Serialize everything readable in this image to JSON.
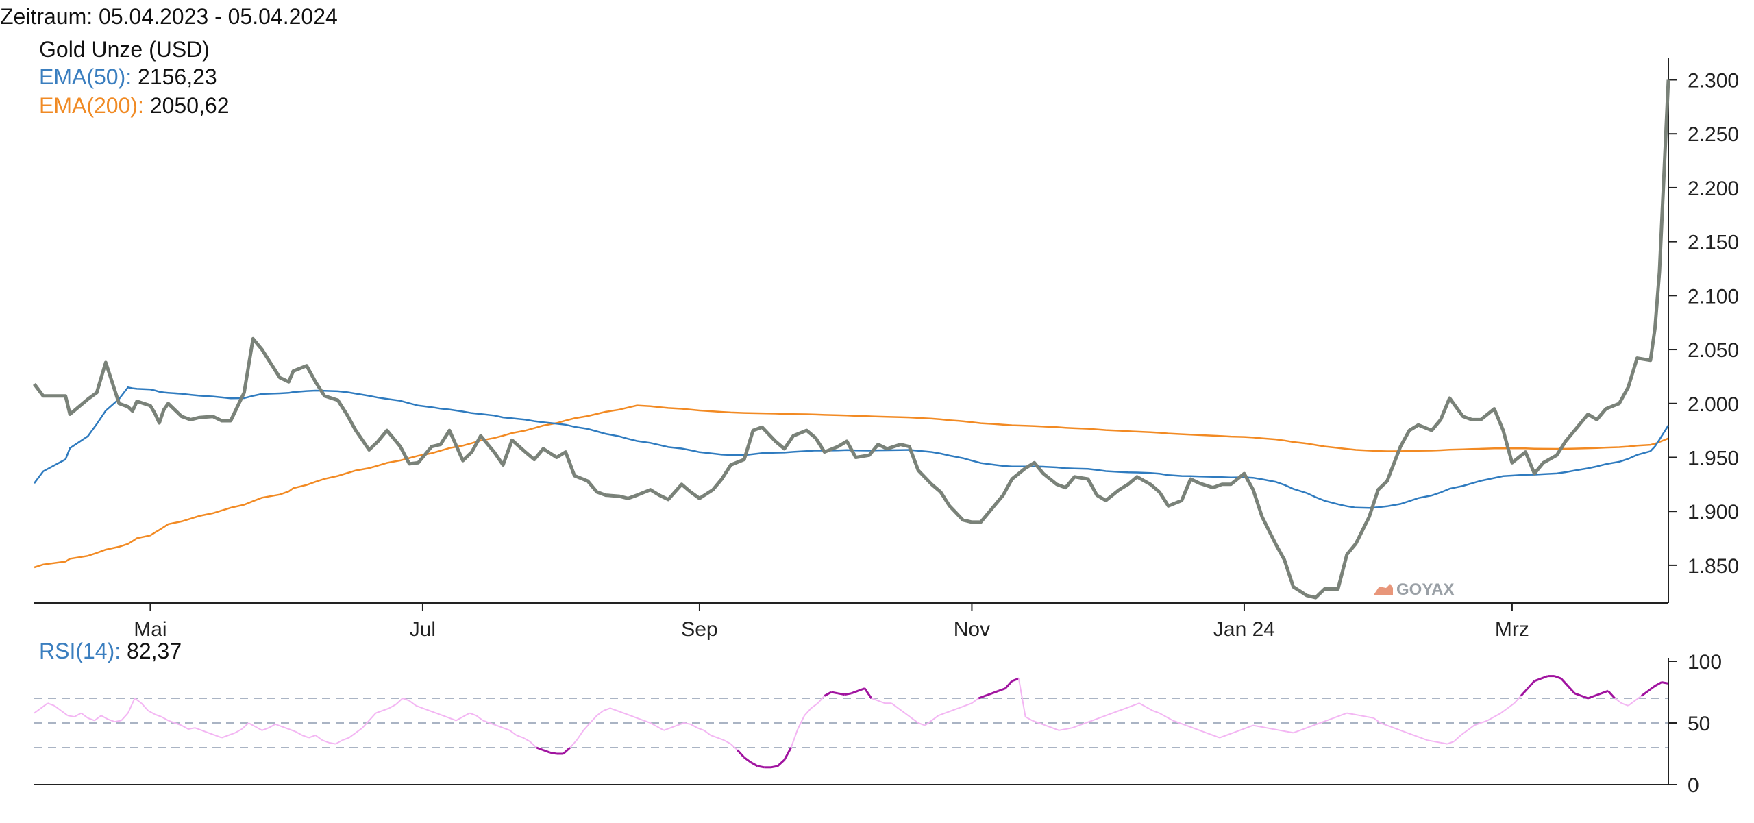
{
  "header": {
    "period": "Zeitraum: 05.04.2023 - 05.04.2024"
  },
  "legend": {
    "gold": "Gold Unze (USD)",
    "ema50_label": "EMA(50):",
    "ema50_value": "2156,23",
    "ema200_label": "EMA(200):",
    "ema200_value": "2050,62",
    "rsi_label": "RSI(14):",
    "rsi_value": "82,37"
  },
  "watermark": "GOYAX",
  "colors": {
    "price": "#7a8279",
    "ema50": "#2f7bbf",
    "ema200": "#f28a23",
    "rsi_neutral": "#f3b6f3",
    "rsi_extreme": "#a0139f",
    "guide": "#aab4c4"
  },
  "chart_data": [
    {
      "type": "line",
      "x_ticks": [
        "Mai",
        "Jul",
        "Sep",
        "Nov",
        "Jan 24",
        "Mrz"
      ],
      "y_ticks": [
        "1.850",
        "1.900",
        "1.950",
        "2.000",
        "2.050",
        "2.100",
        "2.150",
        "2.200",
        "2.250",
        "2.300"
      ],
      "tick_values": [
        1850,
        1900,
        1950,
        2000,
        2050,
        2100,
        2150,
        2200,
        2250,
        2300
      ],
      "ylim": [
        1815,
        2320
      ],
      "x_start": "2023-04-05",
      "x_end": "2024-04-05",
      "series": [
        {
          "name": "Gold Unze (USD)",
          "points": [
            [
              "2023-04-05",
              2018
            ],
            [
              "2023-04-07",
              2007
            ],
            [
              "2023-04-12",
              2007
            ],
            [
              "2023-04-13",
              1990
            ],
            [
              "2023-04-17",
              2004
            ],
            [
              "2023-04-19",
              2010
            ],
            [
              "2023-04-21",
              2038
            ],
            [
              "2023-04-24",
              2000
            ],
            [
              "2023-04-26",
              1997
            ],
            [
              "2023-04-27",
              1993
            ],
            [
              "2023-04-28",
              2002
            ],
            [
              "2023-05-01",
              1998
            ],
            [
              "2023-05-02",
              1991
            ],
            [
              "2023-05-03",
              1982
            ],
            [
              "2023-05-04",
              1994
            ],
            [
              "2023-05-05",
              2000
            ],
            [
              "2023-05-08",
              1988
            ],
            [
              "2023-05-10",
              1985
            ],
            [
              "2023-05-12",
              1987
            ],
            [
              "2023-05-15",
              1988
            ],
            [
              "2023-05-17",
              1984
            ],
            [
              "2023-05-19",
              1984
            ],
            [
              "2023-05-22",
              2010
            ],
            [
              "2023-05-24",
              2060
            ],
            [
              "2023-05-26",
              2050
            ],
            [
              "2023-05-30",
              2024
            ],
            [
              "2023-06-01",
              2020
            ],
            [
              "2023-06-02",
              2030
            ],
            [
              "2023-06-05",
              2035
            ],
            [
              "2023-06-07",
              2020
            ],
            [
              "2023-06-09",
              2007
            ],
            [
              "2023-06-12",
              2003
            ],
            [
              "2023-06-14",
              1990
            ],
            [
              "2023-06-16",
              1975
            ],
            [
              "2023-06-19",
              1957
            ],
            [
              "2023-06-21",
              1965
            ],
            [
              "2023-06-23",
              1975
            ],
            [
              "2023-06-26",
              1960
            ],
            [
              "2023-06-28",
              1944
            ],
            [
              "2023-06-30",
              1945
            ],
            [
              "2023-07-03",
              1960
            ],
            [
              "2023-07-05",
              1962
            ],
            [
              "2023-07-07",
              1975
            ],
            [
              "2023-07-10",
              1947
            ],
            [
              "2023-07-12",
              1955
            ],
            [
              "2023-07-14",
              1970
            ],
            [
              "2023-07-17",
              1955
            ],
            [
              "2023-07-19",
              1943
            ],
            [
              "2023-07-21",
              1966
            ],
            [
              "2023-07-24",
              1955
            ],
            [
              "2023-07-26",
              1948
            ],
            [
              "2023-07-28",
              1958
            ],
            [
              "2023-07-31",
              1950
            ],
            [
              "2023-08-02",
              1955
            ],
            [
              "2023-08-04",
              1933
            ],
            [
              "2023-08-07",
              1928
            ],
            [
              "2023-08-09",
              1918
            ],
            [
              "2023-08-11",
              1915
            ],
            [
              "2023-08-14",
              1914
            ],
            [
              "2023-08-16",
              1912
            ],
            [
              "2023-08-18",
              1915
            ],
            [
              "2023-08-21",
              1920
            ],
            [
              "2023-08-23",
              1915
            ],
            [
              "2023-08-25",
              1911
            ],
            [
              "2023-08-28",
              1925
            ],
            [
              "2023-08-30",
              1918
            ],
            [
              "2023-09-01",
              1912
            ],
            [
              "2023-09-04",
              1920
            ],
            [
              "2023-09-06",
              1930
            ],
            [
              "2023-09-08",
              1943
            ],
            [
              "2023-09-11",
              1948
            ],
            [
              "2023-09-13",
              1975
            ],
            [
              "2023-09-15",
              1978
            ],
            [
              "2023-09-18",
              1965
            ],
            [
              "2023-09-20",
              1958
            ],
            [
              "2023-09-22",
              1970
            ],
            [
              "2023-09-25",
              1975
            ],
            [
              "2023-09-27",
              1968
            ],
            [
              "2023-09-29",
              1955
            ],
            [
              "2023-10-02",
              1960
            ],
            [
              "2023-10-04",
              1965
            ],
            [
              "2023-10-06",
              1950
            ],
            [
              "2023-10-09",
              1952
            ],
            [
              "2023-10-11",
              1962
            ],
            [
              "2023-10-13",
              1958
            ],
            [
              "2023-10-16",
              1962
            ],
            [
              "2023-10-18",
              1960
            ],
            [
              "2023-10-20",
              1938
            ],
            [
              "2023-10-23",
              1925
            ],
            [
              "2023-10-25",
              1918
            ],
            [
              "2023-10-27",
              1905
            ],
            [
              "2023-10-30",
              1892
            ],
            [
              "2023-11-01",
              1890
            ],
            [
              "2023-11-03",
              1890
            ],
            [
              "2023-11-06",
              1905
            ],
            [
              "2023-11-08",
              1915
            ],
            [
              "2023-11-10",
              1930
            ],
            [
              "2023-11-13",
              1940
            ],
            [
              "2023-11-15",
              1945
            ],
            [
              "2023-11-17",
              1935
            ],
            [
              "2023-11-20",
              1925
            ],
            [
              "2023-11-22",
              1922
            ],
            [
              "2023-11-24",
              1932
            ],
            [
              "2023-11-27",
              1930
            ],
            [
              "2023-11-29",
              1915
            ],
            [
              "2023-12-01",
              1910
            ],
            [
              "2023-12-04",
              1920
            ],
            [
              "2023-12-06",
              1925
            ],
            [
              "2023-12-08",
              1932
            ],
            [
              "2023-12-11",
              1925
            ],
            [
              "2023-12-13",
              1918
            ],
            [
              "2023-12-15",
              1905
            ],
            [
              "2023-12-18",
              1910
            ],
            [
              "2023-12-20",
              1930
            ],
            [
              "2023-12-22",
              1926
            ],
            [
              "2023-12-25",
              1922
            ],
            [
              "2023-12-27",
              1925
            ],
            [
              "2023-12-29",
              1925
            ],
            [
              "2024-01-01",
              1935
            ],
            [
              "2024-01-03",
              1920
            ],
            [
              "2024-01-05",
              1895
            ],
            [
              "2024-01-08",
              1870
            ],
            [
              "2024-01-10",
              1855
            ],
            [
              "2024-01-12",
              1830
            ],
            [
              "2024-01-15",
              1822
            ],
            [
              "2024-01-17",
              1820
            ],
            [
              "2024-01-19",
              1828
            ],
            [
              "2024-01-22",
              1828
            ],
            [
              "2024-01-24",
              1860
            ],
            [
              "2024-01-26",
              1870
            ],
            [
              "2024-01-29",
              1895
            ],
            [
              "2024-01-31",
              1920
            ],
            [
              "2024-02-02",
              1928
            ],
            [
              "2024-02-05",
              1960
            ],
            [
              "2024-02-07",
              1975
            ],
            [
              "2024-02-09",
              1980
            ],
            [
              "2024-02-12",
              1975
            ],
            [
              "2024-02-14",
              1985
            ],
            [
              "2024-02-16",
              2005
            ],
            [
              "2024-02-19",
              1988
            ],
            [
              "2024-02-21",
              1985
            ],
            [
              "2024-02-23",
              1985
            ],
            [
              "2024-02-26",
              1995
            ],
            [
              "2024-02-28",
              1975
            ],
            [
              "2024-03-01",
              1945
            ],
            [
              "2024-03-04",
              1955
            ],
            [
              "2024-03-06",
              1935
            ],
            [
              "2024-03-08",
              1945
            ],
            [
              "2024-03-11",
              1952
            ],
            [
              "2024-03-13",
              1965
            ],
            [
              "2024-03-15",
              1975
            ],
            [
              "2024-03-18",
              1990
            ],
            [
              "2024-03-20",
              1985
            ],
            [
              "2024-03-22",
              1995
            ],
            [
              "2024-03-25",
              2000
            ],
            [
              "2024-03-27",
              2015
            ],
            [
              "2024-03-29",
              2042
            ],
            [
              "2024-04-01",
              2040
            ],
            [
              "2024-04-02",
              2070
            ],
            [
              "2024-04-03",
              2122
            ],
            [
              "2024-04-05",
              2300
            ]
          ]
        }
      ]
    },
    {
      "type": "line",
      "title": "",
      "y_ticks": [
        "0",
        "50",
        "100"
      ],
      "tick_values": [
        0,
        50,
        100
      ],
      "ylim": [
        0,
        100
      ],
      "guides": [
        30,
        50,
        70
      ],
      "series": [
        {
          "name": "RSI(14)",
          "values": [
            58,
            62,
            66,
            64,
            60,
            56,
            55,
            58,
            54,
            52,
            56,
            53,
            51,
            52,
            58,
            70,
            66,
            60,
            57,
            55,
            52,
            50,
            48,
            45,
            46,
            44,
            42,
            40,
            38,
            40,
            42,
            45,
            50,
            47,
            44,
            46,
            49,
            47,
            45,
            43,
            40,
            38,
            40,
            36,
            34,
            33,
            36,
            38,
            42,
            46,
            52,
            58,
            60,
            62,
            65,
            70,
            68,
            64,
            62,
            60,
            58,
            56,
            54,
            52,
            55,
            58,
            56,
            52,
            50,
            48,
            46,
            44,
            40,
            38,
            35,
            30,
            28,
            26,
            25,
            25,
            30,
            36,
            44,
            50,
            56,
            60,
            62,
            60,
            58,
            56,
            54,
            52,
            50,
            47,
            44,
            46,
            48,
            50,
            49,
            46,
            44,
            40,
            38,
            36,
            33,
            28,
            22,
            18,
            15,
            14,
            14,
            15,
            20,
            30,
            45,
            56,
            62,
            66,
            72,
            75,
            74,
            73,
            74,
            76,
            78,
            70,
            68,
            66,
            66,
            62,
            58,
            54,
            50,
            48,
            52,
            56,
            58,
            60,
            62,
            64,
            66,
            70,
            72,
            74,
            76,
            78,
            84,
            86,
            55,
            52,
            50,
            48,
            46,
            44,
            45,
            46,
            48,
            50,
            52,
            54,
            56,
            58,
            60,
            62,
            64,
            66,
            63,
            60,
            58,
            55,
            52,
            50,
            48,
            46,
            44,
            42,
            40,
            38,
            40,
            42,
            44,
            46,
            48,
            47,
            46,
            45,
            44,
            43,
            42,
            44,
            46,
            48,
            50,
            52,
            54,
            56,
            58,
            57,
            56,
            55,
            54,
            50,
            48,
            46,
            44,
            42,
            40,
            38,
            36,
            35,
            34,
            33,
            35,
            40,
            44,
            48,
            50,
            52,
            55,
            58,
            62,
            66,
            72,
            78,
            84,
            86,
            88,
            88,
            86,
            80,
            74,
            72,
            70,
            72,
            74,
            76,
            70,
            66,
            64,
            68,
            72,
            76,
            80,
            83,
            82
          ]
        }
      ]
    }
  ]
}
